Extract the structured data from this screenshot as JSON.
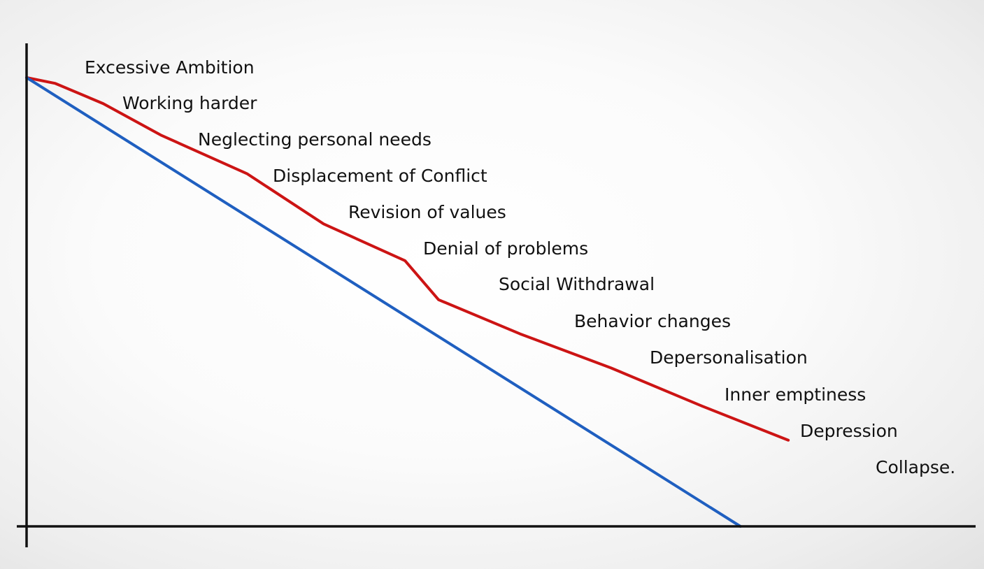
{
  "chart_data": {
    "type": "line",
    "title": "",
    "xlabel": "",
    "ylabel": "",
    "grid": false,
    "series": [
      {
        "name": "",
        "color": "#cc1414",
        "points": [
          [
            0,
            100
          ],
          [
            6,
            98.7
          ],
          [
            16,
            94.2
          ],
          [
            28,
            87.2
          ],
          [
            46,
            78.6
          ],
          [
            62,
            67.4
          ],
          [
            79,
            59.2
          ],
          [
            86,
            50.5
          ],
          [
            103,
            42.9
          ],
          [
            122,
            35.3
          ],
          [
            141,
            26.8
          ],
          [
            159,
            19.2
          ]
        ]
      },
      {
        "name": "",
        "color": "#1f5fc0",
        "points": [
          [
            0,
            100
          ],
          [
            149,
            0
          ]
        ]
      }
    ],
    "xlim": [
      0,
      200
    ],
    "ylim": [
      0,
      100
    ],
    "annotations": [
      {
        "text": "Excessive Ambition"
      },
      {
        "text": "Working harder"
      },
      {
        "text": "Neglecting personal needs"
      },
      {
        "text": "Displacement of Conflict"
      },
      {
        "text": "Revision of values"
      },
      {
        "text": "Denial of problems"
      },
      {
        "text": "Social Withdrawal"
      },
      {
        "text": "Behavior changes"
      },
      {
        "text": "Depersonalisation"
      },
      {
        "text": "Inner emptiness"
      },
      {
        "text": "Depression"
      },
      {
        "text": "Collapse."
      }
    ]
  }
}
